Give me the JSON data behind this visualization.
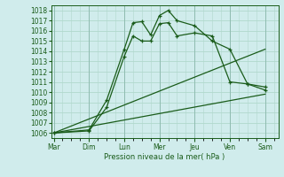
{
  "xlabel": "Pression niveau de la mer( hPa )",
  "background_color": "#d0ecec",
  "grid_color": "#b0d8cc",
  "line_color": "#1a5c1a",
  "ylim": [
    1005.5,
    1018.5
  ],
  "yticks": [
    1006,
    1007,
    1008,
    1009,
    1010,
    1011,
    1012,
    1013,
    1014,
    1015,
    1016,
    1017,
    1018
  ],
  "day_labels": [
    "Mar",
    "Dim",
    "Lun",
    "Mer",
    "Jeu",
    "Ven",
    "Sam"
  ],
  "day_x_positions": [
    0,
    4,
    8,
    12,
    16,
    20,
    24
  ],
  "xlim": [
    -0.3,
    25.5
  ],
  "series_jagged_1": {
    "x": [
      0,
      4,
      6,
      8,
      9,
      10,
      11,
      12,
      13,
      14,
      16,
      18,
      20,
      22,
      24
    ],
    "y": [
      1006.0,
      1006.2,
      1008.5,
      1013.5,
      1015.5,
      1015.0,
      1015.0,
      1016.7,
      1016.8,
      1015.5,
      1015.8,
      1015.5,
      1011.0,
      1010.8,
      1010.5
    ]
  },
  "series_jagged_2": {
    "x": [
      0,
      4,
      6,
      8,
      9,
      10,
      11,
      12,
      13,
      14,
      16,
      18,
      20,
      22,
      24
    ],
    "y": [
      1006.0,
      1006.3,
      1009.2,
      1014.2,
      1016.8,
      1016.9,
      1015.6,
      1017.5,
      1018.0,
      1017.0,
      1016.5,
      1015.0,
      1014.2,
      1010.8,
      1010.2
    ]
  },
  "series_smooth_1": {
    "x": [
      0,
      24
    ],
    "y": [
      1006.0,
      1009.8
    ]
  },
  "series_smooth_2": {
    "x": [
      0,
      24
    ],
    "y": [
      1006.0,
      1014.2
    ]
  }
}
